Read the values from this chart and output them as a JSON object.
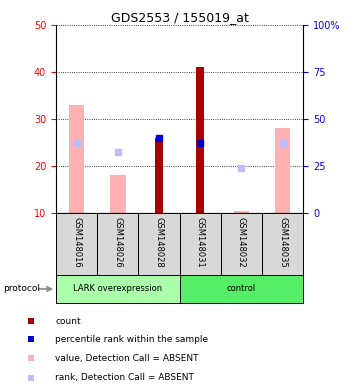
{
  "title": "GDS2553 / 155019_at",
  "samples": [
    "GSM148016",
    "GSM148026",
    "GSM148028",
    "GSM148031",
    "GSM148032",
    "GSM148035"
  ],
  "group_boundaries": [
    0,
    3,
    6
  ],
  "group_labels": [
    "LARK overexpression",
    "control"
  ],
  "group_colors": [
    "#AAFFAA",
    "#44EE55"
  ],
  "ylim_left": [
    10,
    50
  ],
  "ylim_right": [
    0,
    100
  ],
  "yticks_left": [
    10,
    20,
    30,
    40,
    50
  ],
  "yticks_right": [
    0,
    25,
    50,
    75,
    100
  ],
  "ytick_labels_right": [
    "0",
    "25",
    "50",
    "75",
    "100%"
  ],
  "bars_count": [
    null,
    null,
    26,
    41,
    null,
    null
  ],
  "bars_rank": [
    null,
    null,
    26,
    25,
    null,
    null
  ],
  "bars_value_absent": [
    33,
    18,
    null,
    null,
    10.5,
    28
  ],
  "bars_rank_absent": [
    25,
    23,
    null,
    null,
    19.5,
    25
  ],
  "count_color": "#AA0000",
  "rank_color": "#0000CC",
  "value_absent_color": "#FFB0B0",
  "rank_absent_color": "#BBBBFF",
  "legend_items": [
    {
      "label": "count",
      "color": "#AA0000"
    },
    {
      "label": "percentile rank within the sample",
      "color": "#0000CC"
    },
    {
      "label": "value, Detection Call = ABSENT",
      "color": "#FFB0B0"
    },
    {
      "label": "rank, Detection Call = ABSENT",
      "color": "#BBBBFF"
    }
  ]
}
